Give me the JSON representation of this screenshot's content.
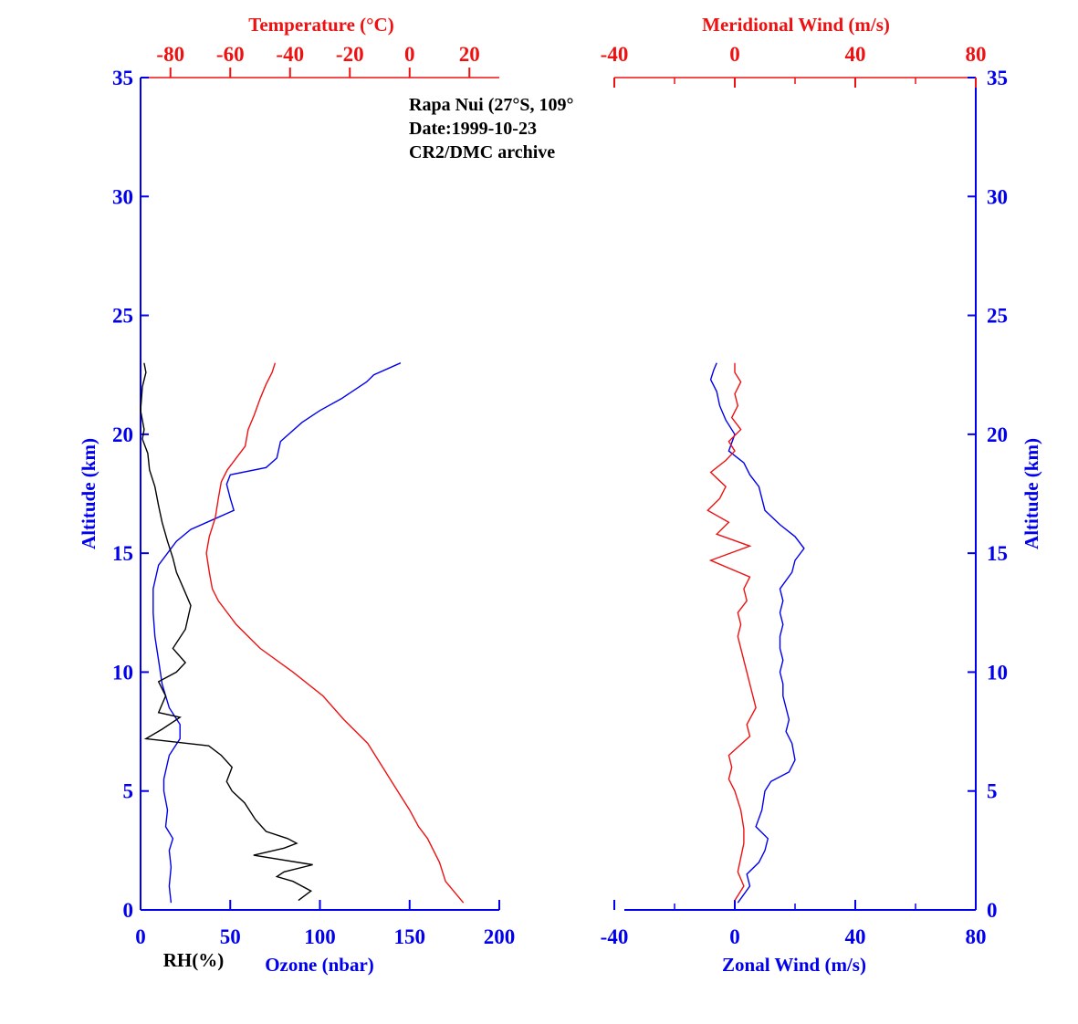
{
  "colors": {
    "blue": "#0000ee",
    "red": "#ee1111",
    "black": "#000000"
  },
  "chart_data": [
    {
      "type": "line",
      "panel": "left",
      "annotation": [
        "Rapa Nui (27°S, 109°",
        "Date:1999-10-23",
        "CR2/DMC archive"
      ],
      "y_axis": {
        "label": "Altitude (km)",
        "range": [
          0,
          35
        ],
        "ticks": [
          0,
          5,
          10,
          15,
          20,
          25,
          30,
          35
        ]
      },
      "x_axis_bottom": {
        "label": "Ozone (nbar)",
        "secondary_label": "RH(%)",
        "range": [
          0,
          200
        ],
        "ticks": [
          0,
          50,
          100,
          150,
          200
        ]
      },
      "x_axis_top": {
        "label": "Temperature (°C)",
        "range": [
          -90,
          30
        ],
        "ticks": [
          -80,
          -60,
          -40,
          -20,
          0,
          20
        ]
      },
      "series": [
        {
          "key": "ozone",
          "color": "blue",
          "axis": "bottom",
          "points": [
            [
              17,
              0.3
            ],
            [
              16,
              1
            ],
            [
              17,
              1.8
            ],
            [
              16,
              2.5
            ],
            [
              18,
              3
            ],
            [
              14,
              3.5
            ],
            [
              15,
              4.2
            ],
            [
              13,
              5
            ],
            [
              13,
              5.5
            ],
            [
              16,
              6.5
            ],
            [
              22,
              7.2
            ],
            [
              22,
              7.8
            ],
            [
              16,
              8.5
            ],
            [
              12,
              9.5
            ],
            [
              10,
              10.5
            ],
            [
              8,
              11.5
            ],
            [
              7,
              12.5
            ],
            [
              7,
              13.5
            ],
            [
              10,
              14.5
            ],
            [
              20,
              15.5
            ],
            [
              28,
              16
            ],
            [
              40,
              16.4
            ],
            [
              52,
              16.8
            ],
            [
              50,
              17.3
            ],
            [
              48,
              17.9
            ],
            [
              50,
              18.3
            ],
            [
              70,
              18.6
            ],
            [
              76,
              19
            ],
            [
              78,
              19.7
            ],
            [
              90,
              20.5
            ],
            [
              100,
              21
            ],
            [
              112,
              21.5
            ],
            [
              120,
              21.9
            ],
            [
              126,
              22.2
            ],
            [
              130,
              22.5
            ],
            [
              145,
              23
            ]
          ]
        },
        {
          "key": "rh",
          "color": "black",
          "axis": "bottom",
          "points": [
            [
              88,
              0.4
            ],
            [
              95,
              0.8
            ],
            [
              85,
              1.2
            ],
            [
              76,
              1.4
            ],
            [
              80,
              1.6
            ],
            [
              96,
              1.9
            ],
            [
              63,
              2.3
            ],
            [
              80,
              2.6
            ],
            [
              87,
              2.8
            ],
            [
              82,
              3
            ],
            [
              70,
              3.3
            ],
            [
              64,
              3.8
            ],
            [
              58,
              4.5
            ],
            [
              51,
              5
            ],
            [
              48,
              5.4
            ],
            [
              51,
              6
            ],
            [
              45,
              6.5
            ],
            [
              38,
              6.9
            ],
            [
              3,
              7.2
            ],
            [
              12,
              7.6
            ],
            [
              22,
              8.1
            ],
            [
              10,
              8.3
            ],
            [
              14,
              9
            ],
            [
              10,
              9.6
            ],
            [
              20,
              10
            ],
            [
              25,
              10.4
            ],
            [
              18,
              11
            ],
            [
              25,
              11.8
            ],
            [
              28,
              12.8
            ],
            [
              24,
              13.5
            ],
            [
              20,
              14.2
            ],
            [
              18,
              14.8
            ],
            [
              15,
              15.5
            ],
            [
              12,
              16.3
            ],
            [
              10,
              17
            ],
            [
              8,
              17.8
            ],
            [
              5,
              18.5
            ],
            [
              4,
              19.2
            ],
            [
              1,
              19.8
            ],
            [
              2,
              20.2
            ],
            [
              0,
              21
            ],
            [
              1,
              22
            ],
            [
              3,
              22.6
            ],
            [
              2,
              23
            ]
          ]
        },
        {
          "key": "temperature",
          "color": "red",
          "axis": "top",
          "points": [
            [
              18,
              0.3
            ],
            [
              12,
              1.2
            ],
            [
              10,
              2
            ],
            [
              6,
              3
            ],
            [
              3,
              3.5
            ],
            [
              0,
              4.2
            ],
            [
              -4,
              5
            ],
            [
              -9,
              6
            ],
            [
              -14,
              7
            ],
            [
              -22,
              8
            ],
            [
              -29,
              9
            ],
            [
              -39,
              10
            ],
            [
              -50,
              11
            ],
            [
              -58,
              12
            ],
            [
              -64,
              13
            ],
            [
              -66,
              13.5
            ],
            [
              -67,
              14.2
            ],
            [
              -68,
              15
            ],
            [
              -67,
              15.7
            ],
            [
              -65,
              16.5
            ],
            [
              -64,
              17.3
            ],
            [
              -63,
              18
            ],
            [
              -61,
              18.5
            ],
            [
              -58,
              19
            ],
            [
              -55,
              19.5
            ],
            [
              -54,
              20.2
            ],
            [
              -52,
              20.8
            ],
            [
              -50,
              21.5
            ],
            [
              -48,
              22.1
            ],
            [
              -46,
              22.6
            ],
            [
              -45,
              23
            ]
          ]
        }
      ]
    },
    {
      "type": "line",
      "panel": "right",
      "y_axis": {
        "label": "Altitude (km)",
        "range": [
          0,
          35
        ],
        "ticks": [
          0,
          5,
          10,
          15,
          20,
          25,
          30,
          35
        ]
      },
      "x_axis_bottom": {
        "label": "Zonal Wind (m/s)",
        "range": [
          -40,
          80
        ],
        "ticks": [
          -40,
          0,
          40,
          80
        ]
      },
      "x_axis_top": {
        "label": "Meridional Wind (m/s)",
        "range": [
          -40,
          80
        ],
        "ticks": [
          -40,
          0,
          40,
          80
        ]
      },
      "series": [
        {
          "key": "zonal_wind",
          "color": "blue",
          "axis": "bottom",
          "points": [
            [
              1,
              0.3
            ],
            [
              5,
              1
            ],
            [
              4,
              1.5
            ],
            [
              8,
              2
            ],
            [
              10,
              2.5
            ],
            [
              11,
              3
            ],
            [
              7,
              3.5
            ],
            [
              9,
              4.2
            ],
            [
              10,
              5
            ],
            [
              12,
              5.4
            ],
            [
              18,
              5.8
            ],
            [
              20,
              6.3
            ],
            [
              19,
              7
            ],
            [
              17,
              7.5
            ],
            [
              18,
              8
            ],
            [
              17,
              8.5
            ],
            [
              16,
              9
            ],
            [
              16,
              9.5
            ],
            [
              15,
              10
            ],
            [
              16,
              10.5
            ],
            [
              15,
              11
            ],
            [
              15,
              11.5
            ],
            [
              16,
              12
            ],
            [
              15,
              12.5
            ],
            [
              16,
              13
            ],
            [
              15,
              13.5
            ],
            [
              19,
              14.2
            ],
            [
              20,
              14.7
            ],
            [
              23,
              15.2
            ],
            [
              20,
              15.7
            ],
            [
              15,
              16.2
            ],
            [
              10,
              16.8
            ],
            [
              9,
              17.3
            ],
            [
              8,
              17.8
            ],
            [
              5,
              18.3
            ],
            [
              3,
              18.8
            ],
            [
              -2,
              19.3
            ],
            [
              0,
              20
            ],
            [
              -3,
              20.6
            ],
            [
              -5,
              21.2
            ],
            [
              -6,
              21.8
            ],
            [
              -8,
              22.3
            ],
            [
              -7,
              22.7
            ],
            [
              -6,
              23
            ]
          ]
        },
        {
          "key": "meridional_wind",
          "color": "red",
          "axis": "top",
          "points": [
            [
              0,
              0.4
            ],
            [
              3,
              1
            ],
            [
              1,
              1.6
            ],
            [
              2,
              2.2
            ],
            [
              3,
              2.8
            ],
            [
              3,
              3.4
            ],
            [
              2,
              4.2
            ],
            [
              0,
              5
            ],
            [
              -2,
              5.5
            ],
            [
              -1,
              6
            ],
            [
              -2,
              6.5
            ],
            [
              5,
              7.3
            ],
            [
              4,
              7.8
            ],
            [
              7,
              8.5
            ],
            [
              6,
              9
            ],
            [
              5,
              9.5
            ],
            [
              4,
              10
            ],
            [
              3,
              10.5
            ],
            [
              2,
              11
            ],
            [
              1,
              11.5
            ],
            [
              2,
              12
            ],
            [
              1,
              12.5
            ],
            [
              4,
              13
            ],
            [
              3,
              13.5
            ],
            [
              5,
              14
            ],
            [
              -8,
              14.7
            ],
            [
              5,
              15.3
            ],
            [
              -6,
              15.8
            ],
            [
              -2,
              16.3
            ],
            [
              -9,
              16.8
            ],
            [
              -5,
              17.3
            ],
            [
              -3,
              17.8
            ],
            [
              -8,
              18.4
            ],
            [
              -3,
              18.9
            ],
            [
              0,
              19.3
            ],
            [
              -2,
              19.7
            ],
            [
              2,
              20.2
            ],
            [
              -1,
              20.7
            ],
            [
              1,
              21.2
            ],
            [
              0,
              21.7
            ],
            [
              2,
              22.2
            ],
            [
              0,
              22.6
            ],
            [
              0,
              23
            ]
          ]
        }
      ]
    }
  ]
}
